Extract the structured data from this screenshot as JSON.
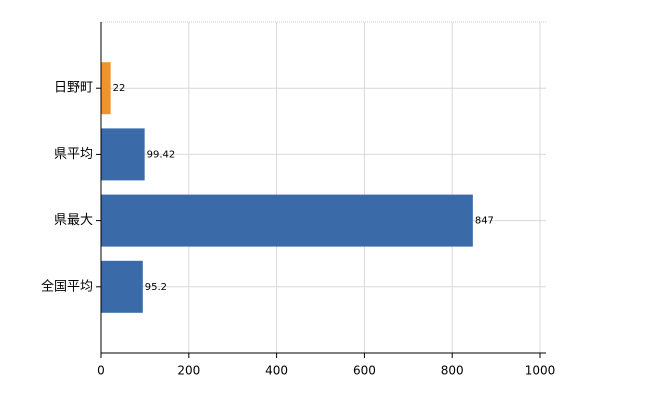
{
  "chart_data": {
    "type": "hbar",
    "categories": [
      "日野町",
      "県平均",
      "県最大",
      "全国平均"
    ],
    "values": [
      22,
      99.42,
      847,
      95.2
    ],
    "colors": [
      "#f0932e",
      "#3a6aa8",
      "#3a6aa8",
      "#3a6aa8"
    ],
    "xlim": [
      0,
      1000
    ],
    "xticks": [
      0,
      200,
      400,
      600,
      800,
      1000
    ],
    "grid": true
  }
}
